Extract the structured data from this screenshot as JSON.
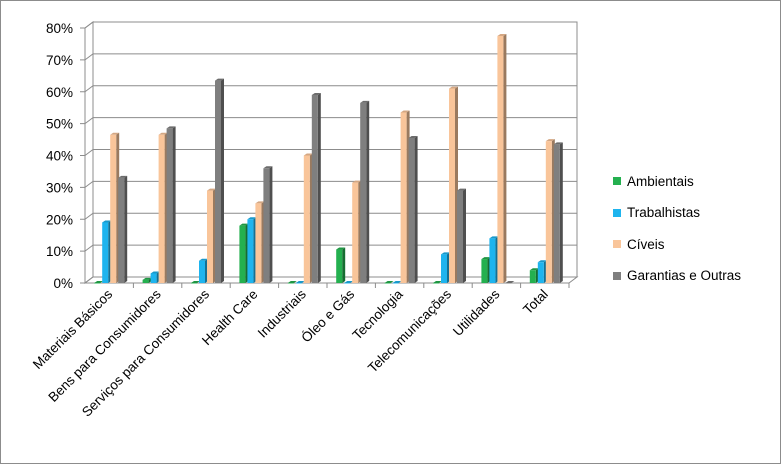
{
  "chart_data": {
    "type": "bar",
    "categories": [
      "Materiais Básicos",
      "Bens para Consumidores",
      "Serviços para Consumidores",
      "Health Care",
      "Industriais",
      "Óleo e Gás",
      "Tecnologia",
      "Telecomunicações",
      "Utilidades",
      "Total"
    ],
    "series": [
      {
        "name": "Ambientais",
        "color": "#24b04f",
        "values": [
          0,
          1,
          0,
          18,
          0,
          10.5,
          0,
          0,
          7.5,
          4
        ]
      },
      {
        "name": "Trabalhistas",
        "color": "#1eb4ee",
        "values": [
          19,
          3,
          7,
          20,
          0,
          0,
          0,
          9,
          14,
          6.5
        ]
      },
      {
        "name": "Cíveis",
        "color": "#f9c59a",
        "values": [
          46.5,
          46.5,
          29,
          25,
          40,
          31.5,
          53.5,
          61,
          77.5,
          44.5
        ]
      },
      {
        "name": "Garantias e Outras",
        "color": "#7f7f7f",
        "values": [
          33,
          48.5,
          63.5,
          36,
          59,
          56.5,
          45.5,
          29,
          0,
          43.5
        ]
      }
    ],
    "y_ticks": [
      "0%",
      "10%",
      "20%",
      "30%",
      "40%",
      "50%",
      "60%",
      "70%",
      "80%"
    ],
    "ylim": [
      0,
      80
    ],
    "grid": true,
    "legend_position": "right"
  }
}
